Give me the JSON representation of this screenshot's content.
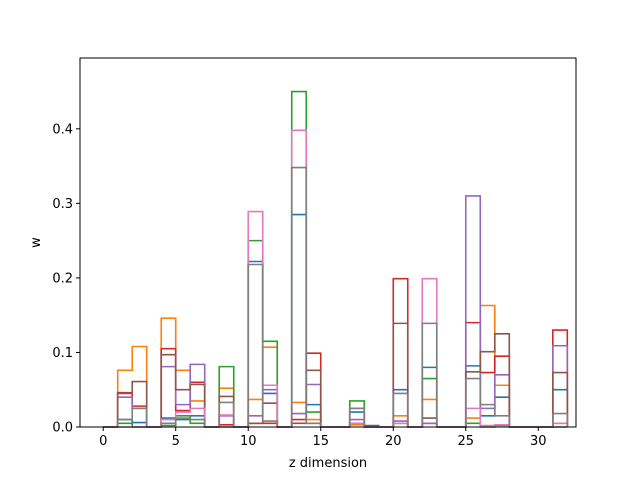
{
  "chart_data": {
    "type": "histogram-step",
    "xlabel": "z dimension",
    "ylabel": "w",
    "xlim": [
      -1.6,
      32.6
    ],
    "ylim": [
      0,
      0.495
    ],
    "x_ticks": [
      0,
      5,
      10,
      15,
      20,
      25,
      30
    ],
    "y_ticks": [
      0.0,
      0.1,
      0.2,
      0.3,
      0.4
    ],
    "y_tick_labels": [
      "0.0",
      "0.1",
      "0.2",
      "0.3",
      "0.4"
    ],
    "bins": 32,
    "bin_edges_start": 0,
    "bin_width": 1,
    "series": [
      {
        "color": "#1f77b4",
        "values": [
          0,
          0.01,
          0.006,
          0,
          0.012,
          0.01,
          0.015,
          0,
          0,
          0,
          0.222,
          0.045,
          0,
          0.285,
          0.03,
          0,
          0,
          0.02,
          0.002,
          0,
          0.05,
          0,
          0.08,
          0,
          0,
          0.082,
          0.015,
          0.04,
          0,
          0,
          0,
          0.05
        ]
      },
      {
        "color": "#ff7f0e",
        "values": [
          0,
          0.076,
          0.108,
          0,
          0.146,
          0.076,
          0.035,
          0,
          0.052,
          0,
          0.037,
          0.107,
          0,
          0.033,
          0.01,
          0,
          0,
          0.003,
          0,
          0,
          0.015,
          0,
          0.037,
          0,
          0,
          0.012,
          0.163,
          0.056,
          0,
          0,
          0,
          0.005
        ]
      },
      {
        "color": "#2ca02c",
        "values": [
          0,
          0.005,
          0,
          0,
          0.002,
          0.015,
          0.005,
          0,
          0.081,
          0,
          0.25,
          0.115,
          0,
          0.45,
          0.02,
          0,
          0,
          0.035,
          0,
          0,
          0.005,
          0,
          0.065,
          0,
          0,
          0.005,
          0,
          0.002,
          0,
          0,
          0,
          0
        ]
      },
      {
        "color": "#d62728",
        "values": [
          0,
          0.046,
          0.028,
          0,
          0.105,
          0.022,
          0.06,
          0,
          0.003,
          0,
          0.005,
          0.005,
          0,
          0.01,
          0.099,
          0,
          0,
          0.005,
          0,
          0,
          0.199,
          0,
          0.005,
          0,
          0,
          0.14,
          0.073,
          0.095,
          0,
          0,
          0,
          0.13
        ]
      },
      {
        "color": "#9467bd",
        "values": [
          0,
          0.04,
          0.025,
          0,
          0.081,
          0.03,
          0.084,
          0,
          0.015,
          0,
          0.015,
          0.05,
          0,
          0.018,
          0.057,
          0,
          0,
          0.01,
          0,
          0,
          0.008,
          0,
          0.005,
          0,
          0,
          0.31,
          0.025,
          0.07,
          0,
          0,
          0,
          0.109
        ]
      },
      {
        "color": "#8c564b",
        "values": [
          0,
          0.045,
          0.061,
          0,
          0.097,
          0.05,
          0.057,
          0,
          0.041,
          0,
          0.005,
          0.032,
          0,
          0.005,
          0.076,
          0,
          0,
          0.025,
          0,
          0,
          0.139,
          0,
          0.012,
          0,
          0,
          0.074,
          0.101,
          0.125,
          0,
          0,
          0,
          0.073
        ]
      },
      {
        "color": "#e377c2",
        "values": [
          0,
          0,
          0,
          0,
          0.01,
          0.02,
          0.025,
          0,
          0.016,
          0,
          0.289,
          0.056,
          0,
          0.398,
          0.005,
          0,
          0,
          0.005,
          0,
          0,
          0.005,
          0,
          0.199,
          0,
          0,
          0.025,
          0.002,
          0.003,
          0,
          0,
          0,
          0.005
        ]
      },
      {
        "color": "#7f7f7f",
        "values": [
          0,
          0.01,
          0.025,
          0,
          0.005,
          0.012,
          0.01,
          0,
          0.033,
          0,
          0.218,
          0.008,
          0,
          0.348,
          0.005,
          0,
          0,
          0.025,
          0,
          0,
          0.045,
          0,
          0.139,
          0,
          0,
          0.065,
          0.03,
          0.015,
          0,
          0,
          0,
          0.018
        ]
      }
    ]
  }
}
